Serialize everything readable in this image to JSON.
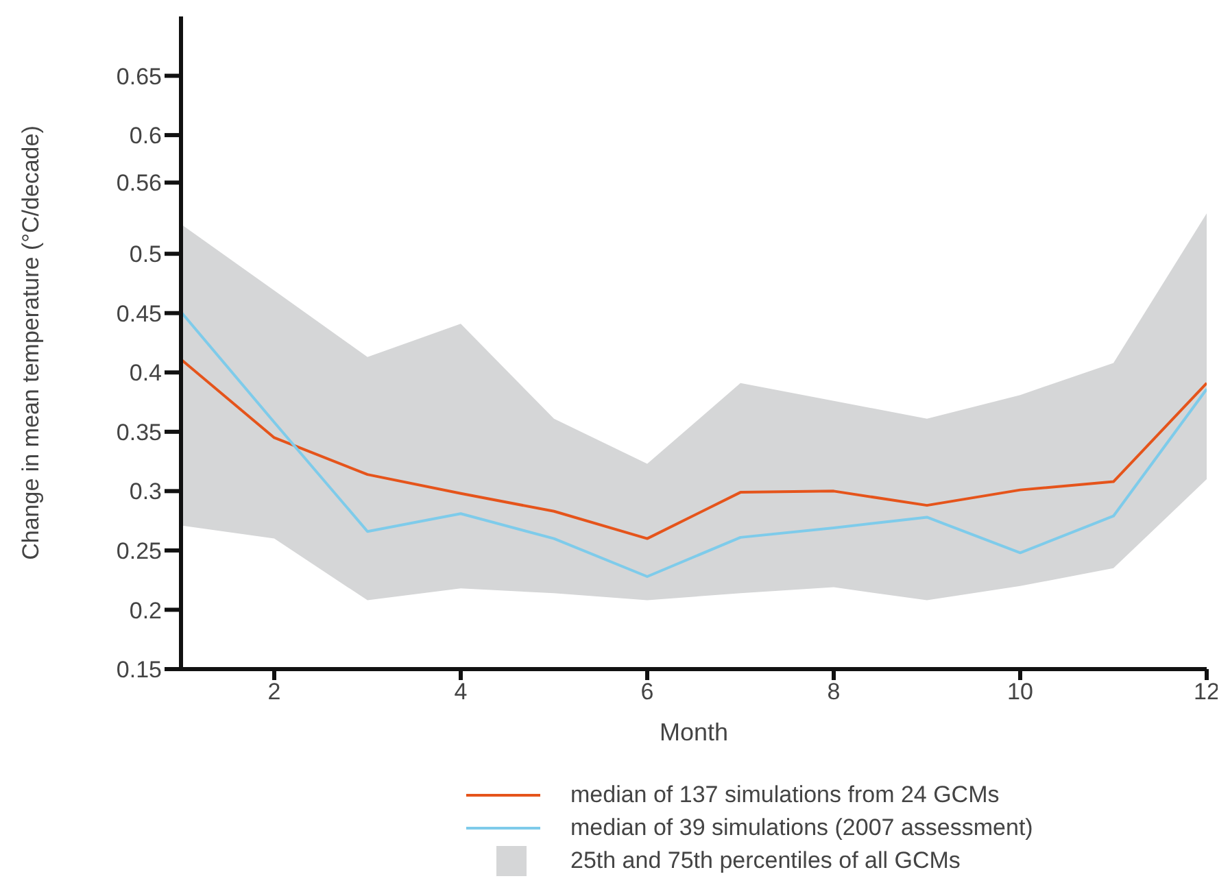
{
  "chart_data": {
    "type": "line",
    "xlabel": "Month",
    "ylabel": "Change in mean temperature (°C/decade)",
    "x": [
      1,
      2,
      3,
      4,
      5,
      6,
      7,
      8,
      9,
      10,
      11,
      12
    ],
    "series": [
      {
        "name": "median of 137 simulations from 24 GCMs",
        "color": "#e5541b",
        "values": [
          0.411,
          0.345,
          0.314,
          0.298,
          0.283,
          0.26,
          0.299,
          0.3,
          0.288,
          0.301,
          0.308,
          0.391
        ]
      },
      {
        "name": "median of 39 simulations (2007 assessment)",
        "color": "#7ecbea",
        "values": [
          0.451,
          0.358,
          0.266,
          0.281,
          0.26,
          0.228,
          0.261,
          0.269,
          0.278,
          0.248,
          0.279,
          0.386
        ]
      },
      {
        "name": "25th and 75th percentiles of all GCMs",
        "type": "area",
        "color": "#d5d6d7",
        "values": [
          null,
          null,
          null,
          null,
          null,
          null,
          null,
          null,
          null,
          null,
          null,
          null
        ],
        "lower": [
          0.271,
          0.26,
          0.208,
          0.218,
          0.214,
          0.208,
          0.214,
          0.219,
          0.208,
          0.22,
          0.235,
          0.31
        ],
        "upper": [
          0.525,
          0.469,
          0.413,
          0.441,
          0.361,
          0.323,
          0.391,
          0.376,
          0.361,
          0.381,
          0.408,
          0.534
        ]
      }
    ],
    "xlim": [
      1,
      12
    ],
    "xticks": [
      2,
      4,
      6,
      8,
      10,
      12
    ],
    "ylim": [
      0.15,
      0.7
    ],
    "yticks": [
      0.15,
      0.2,
      0.25,
      0.3,
      0.35,
      0.4,
      0.45,
      0.5,
      0.56,
      0.6,
      0.65
    ],
    "grid": false,
    "legend": "bottom",
    "marker": "none",
    "line_style": "solid"
  }
}
